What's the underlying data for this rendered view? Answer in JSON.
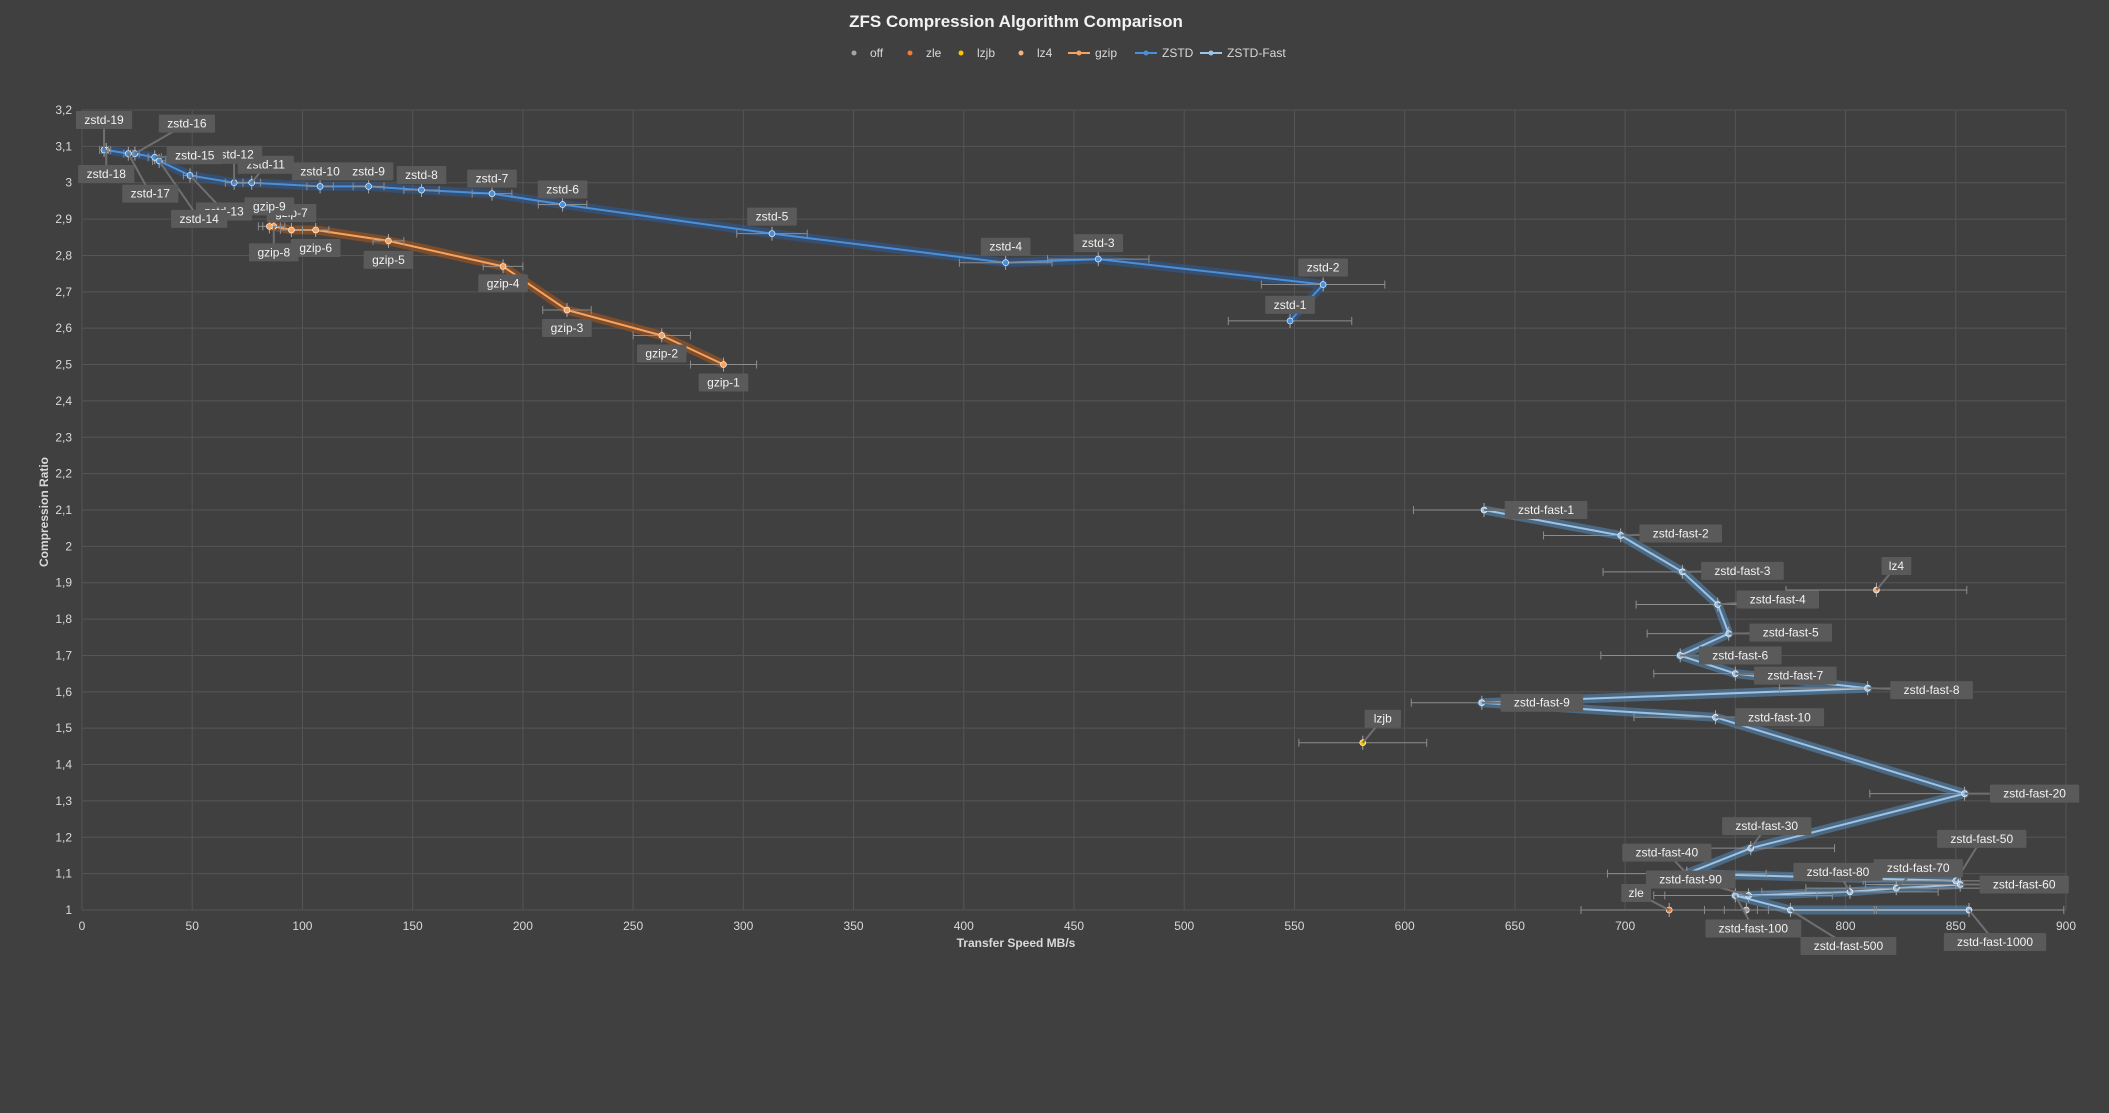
{
  "chart_data": {
    "type": "scatter",
    "title": "ZFS Compression Algorithm Comparison",
    "xlabel": "Transfer Speed MB/s",
    "ylabel": "Compression Ratio",
    "xlim": [
      0,
      900
    ],
    "ylim": [
      1,
      3.2
    ],
    "x_ticks": [
      "0",
      "50",
      "100",
      "150",
      "200",
      "250",
      "300",
      "350",
      "400",
      "450",
      "500",
      "550",
      "600",
      "650",
      "700",
      "750",
      "800",
      "850",
      "900"
    ],
    "y_ticks": [
      "1",
      "1,1",
      "1,2",
      "1,3",
      "1,4",
      "1,5",
      "1,6",
      "1,7",
      "1,8",
      "1,9",
      "2",
      "2,1",
      "2,2",
      "2,3",
      "2,4",
      "2,5",
      "2,6",
      "2,7",
      "2,8",
      "2,9",
      "3",
      "3,1",
      "3,2"
    ],
    "grid": true,
    "legend_position": "top",
    "series": [
      {
        "name": "off",
        "color": "#a5a5a5",
        "line": false,
        "points": [
          {
            "label": "",
            "x": 755,
            "y": 1.0,
            "xerr": 10
          }
        ]
      },
      {
        "name": "zle",
        "color": "#ed7d31",
        "line": false,
        "points": [
          {
            "label": "zle",
            "x": 720,
            "y": 1.0,
            "xerr": 40
          }
        ]
      },
      {
        "name": "lzjb",
        "color": "#ffc000",
        "line": false,
        "points": [
          {
            "label": "lzjb",
            "x": 581,
            "y": 1.46,
            "xerr": 29
          }
        ]
      },
      {
        "name": "lz4",
        "color": "#f4b183",
        "line": false,
        "points": [
          {
            "label": "lz4",
            "x": 814,
            "y": 1.88,
            "xerr": 41
          }
        ]
      },
      {
        "name": "gzip",
        "color": "#f4a460",
        "line": true,
        "points": [
          {
            "label": "gzip-1",
            "x": 291,
            "y": 2.5,
            "xerr": 15
          },
          {
            "label": "gzip-2",
            "x": 263,
            "y": 2.58,
            "xerr": 13
          },
          {
            "label": "gzip-3",
            "x": 220,
            "y": 2.65,
            "xerr": 11
          },
          {
            "label": "gzip-4",
            "x": 191,
            "y": 2.77,
            "xerr": 9
          },
          {
            "label": "gzip-5",
            "x": 139,
            "y": 2.84,
            "xerr": 7
          },
          {
            "label": "gzip-6",
            "x": 106,
            "y": 2.87,
            "xerr": 6
          },
          {
            "label": "gzip-7",
            "x": 95,
            "y": 2.87,
            "xerr": 5
          },
          {
            "label": "gzip-8",
            "x": 87,
            "y": 2.88,
            "xerr": 5
          },
          {
            "label": "gzip-9",
            "x": 85,
            "y": 2.88,
            "xerr": 5
          }
        ]
      },
      {
        "name": "ZSTD",
        "color": "#4a90d9",
        "line": true,
        "points": [
          {
            "label": "zstd-1",
            "x": 548,
            "y": 2.62,
            "xerr": 28
          },
          {
            "label": "zstd-2",
            "x": 563,
            "y": 2.72,
            "xerr": 28
          },
          {
            "label": "zstd-3",
            "x": 461,
            "y": 2.79,
            "xerr": 23
          },
          {
            "label": "zstd-4",
            "x": 419,
            "y": 2.78,
            "xerr": 21
          },
          {
            "label": "zstd-5",
            "x": 313,
            "y": 2.86,
            "xerr": 16
          },
          {
            "label": "zstd-6",
            "x": 218,
            "y": 2.94,
            "xerr": 11
          },
          {
            "label": "zstd-7",
            "x": 186,
            "y": 2.97,
            "xerr": 9
          },
          {
            "label": "zstd-8",
            "x": 154,
            "y": 2.98,
            "xerr": 8
          },
          {
            "label": "zstd-9",
            "x": 130,
            "y": 2.99,
            "xerr": 7
          },
          {
            "label": "zstd-10",
            "x": 108,
            "y": 2.99,
            "xerr": 6
          },
          {
            "label": "zstd-11",
            "x": 77,
            "y": 3.0,
            "xerr": 4
          },
          {
            "label": "zstd-12",
            "x": 69,
            "y": 3.0,
            "xerr": 4
          },
          {
            "label": "zstd-13",
            "x": 49,
            "y": 3.02,
            "xerr": 3
          },
          {
            "label": "zstd-14",
            "x": 35,
            "y": 3.06,
            "xerr": 3
          },
          {
            "label": "zstd-15",
            "x": 33,
            "y": 3.07,
            "xerr": 3
          },
          {
            "label": "zstd-16",
            "x": 24,
            "y": 3.08,
            "xerr": 2
          },
          {
            "label": "zstd-17",
            "x": 21,
            "y": 3.08,
            "xerr": 2
          },
          {
            "label": "zstd-18",
            "x": 11,
            "y": 3.09,
            "xerr": 2
          },
          {
            "label": "zstd-19",
            "x": 10,
            "y": 3.09,
            "xerr": 2
          }
        ]
      },
      {
        "name": "ZSTD-Fast",
        "color": "#9dc3e6",
        "line": true,
        "points": [
          {
            "label": "zstd-fast-1",
            "x": 636,
            "y": 2.1,
            "xerr": 32
          },
          {
            "label": "zstd-fast-2",
            "x": 698,
            "y": 2.03,
            "xerr": 35
          },
          {
            "label": "zstd-fast-3",
            "x": 726,
            "y": 1.93,
            "xerr": 36
          },
          {
            "label": "zstd-fast-4",
            "x": 742,
            "y": 1.84,
            "xerr": 37
          },
          {
            "label": "zstd-fast-5",
            "x": 747,
            "y": 1.76,
            "xerr": 37
          },
          {
            "label": "zstd-fast-6",
            "x": 725,
            "y": 1.7,
            "xerr": 36
          },
          {
            "label": "zstd-fast-7",
            "x": 750,
            "y": 1.65,
            "xerr": 37
          },
          {
            "label": "zstd-fast-8",
            "x": 810,
            "y": 1.61,
            "xerr": 40
          },
          {
            "label": "zstd-fast-9",
            "x": 635,
            "y": 1.57,
            "xerr": 32
          },
          {
            "label": "zstd-fast-10",
            "x": 741,
            "y": 1.53,
            "xerr": 37
          },
          {
            "label": "zstd-fast-20",
            "x": 854,
            "y": 1.32,
            "xerr": 43
          },
          {
            "label": "zstd-fast-30",
            "x": 757,
            "y": 1.17,
            "xerr": 38
          },
          {
            "label": "zstd-fast-40",
            "x": 728,
            "y": 1.1,
            "xerr": 36
          },
          {
            "label": "zstd-fast-50",
            "x": 850,
            "y": 1.08,
            "xerr": 42
          },
          {
            "label": "zstd-fast-60",
            "x": 852,
            "y": 1.07,
            "xerr": 43
          },
          {
            "label": "zstd-fast-70",
            "x": 823,
            "y": 1.06,
            "xerr": 41
          },
          {
            "label": "zstd-fast-80",
            "x": 802,
            "y": 1.05,
            "xerr": 40
          },
          {
            "label": "zstd-fast-90",
            "x": 756,
            "y": 1.04,
            "xerr": 38
          },
          {
            "label": "zstd-fast-100",
            "x": 750,
            "y": 1.04,
            "xerr": 37
          },
          {
            "label": "zstd-fast-500",
            "x": 775,
            "y": 1.0,
            "xerr": 39
          },
          {
            "label": "zstd-fast-1000",
            "x": 856,
            "y": 1.0,
            "xerr": 43
          }
        ]
      }
    ]
  }
}
